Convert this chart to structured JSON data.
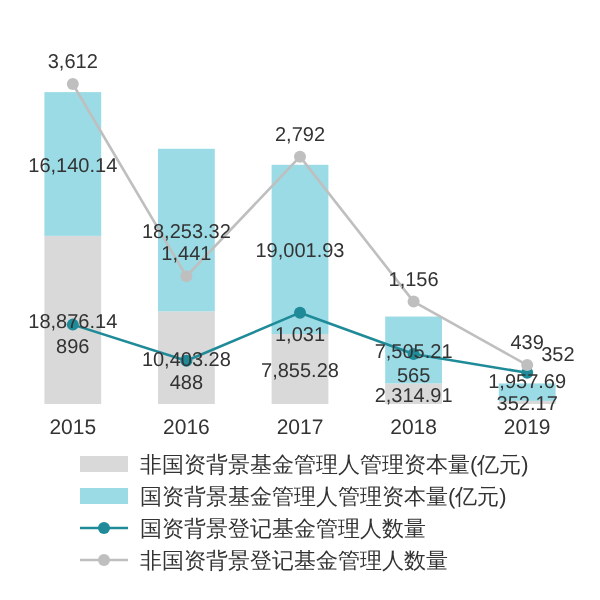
{
  "chart_data": {
    "type": "bar",
    "stacked": true,
    "categories": [
      "2015",
      "2016",
      "2017",
      "2018",
      "2019"
    ],
    "series": [
      {
        "name": "非国资背景基金管理人管理资本量(亿元)",
        "color": "#d9d9d9",
        "values": [
          18876.14,
          10403.28,
          7855.28,
          2314.91,
          352.17
        ],
        "value_labels": [
          "18,876.14",
          "10,403.28",
          "7,855.28",
          "2,314.91",
          "352.17"
        ]
      },
      {
        "name": "国资背景基金管理人管理资本量(亿元)",
        "color": "#9adbe5",
        "values": [
          16140.14,
          18253.32,
          19001.93,
          7505.21,
          1957.69
        ],
        "value_labels": [
          "16,140.14",
          "18,253.32",
          "19,001.93",
          "7,505.21",
          "1,957.69"
        ]
      },
      {
        "name": "国资背景登记基金管理人数量",
        "type": "line",
        "axis": "y2",
        "color": "#1f8a98",
        "values": [
          896,
          488,
          1031,
          565,
          352
        ],
        "value_labels": [
          "896",
          "488",
          "1,031",
          "565",
          "352"
        ]
      },
      {
        "name": "非国资背景登记基金管理人数量",
        "type": "line",
        "axis": "y2",
        "color": "#bfbfbf",
        "values": [
          3612,
          1441,
          2792,
          1156,
          439
        ],
        "value_labels": [
          "3,612",
          "1,441",
          "2,792",
          "1,156",
          "439"
        ]
      }
    ],
    "marker": "circle",
    "legend": "bottom",
    "tick_labels": "x"
  }
}
